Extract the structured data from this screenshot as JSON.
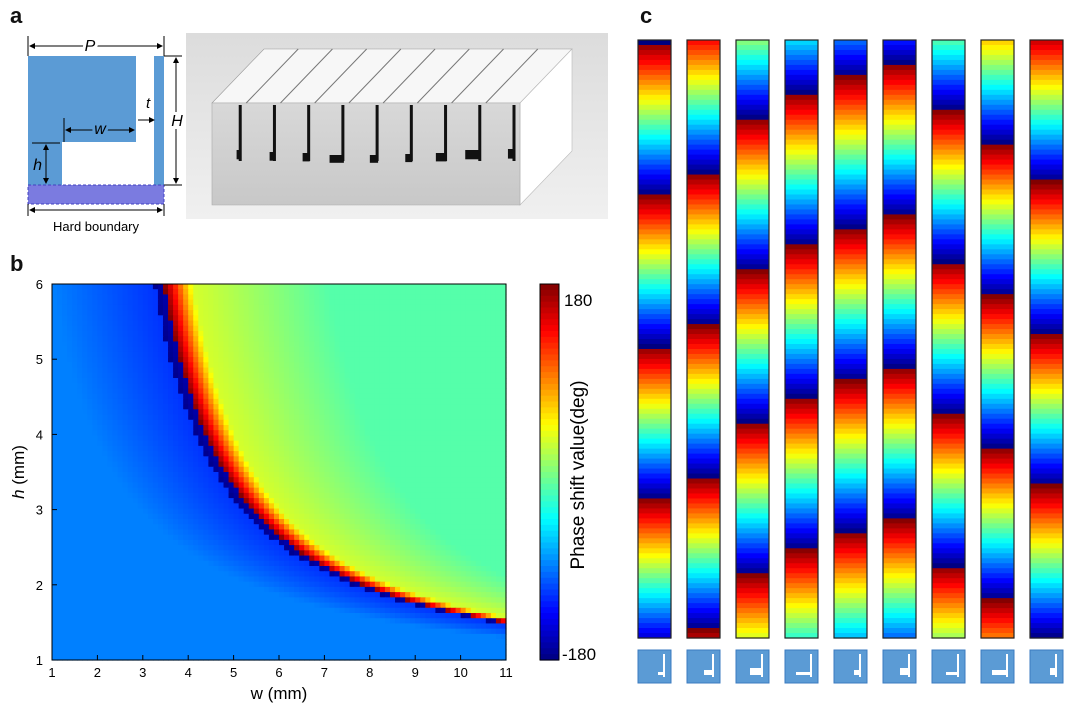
{
  "panels": {
    "a": "a",
    "b": "b",
    "c": "c"
  },
  "diagram_a": {
    "label_P": "P",
    "label_t": "t",
    "label_w": "w",
    "label_h": "h",
    "label_H": "H",
    "boundary_label": "Hard boundary",
    "fill_color": "#5b9bd5",
    "boundary_color": "#7b7be0"
  },
  "colorbar": {
    "max_label": "180",
    "min_label": "-180",
    "title": "Phase shift  value(deg)"
  },
  "chart_data": {
    "type": "heatmap",
    "title": "",
    "xlabel": "w (mm)",
    "ylabel_italic": "h",
    "ylabel_rest": " (mm)",
    "xlim": [
      1,
      11
    ],
    "ylim": [
      1,
      6
    ],
    "xticks": [
      "1",
      "2",
      "3",
      "4",
      "5",
      "6",
      "7",
      "8",
      "9",
      "10",
      "11"
    ],
    "yticks": [
      "1",
      "2",
      "3",
      "4",
      "5",
      "6"
    ],
    "value_range": [
      -180,
      180
    ],
    "colormap": "jet",
    "description_values": {
      "band_start_w_at_h6": 3.5,
      "band_end_w_at_h1_5": 11,
      "background_value_lower_left": -90,
      "background_value_upper_right": 0
    }
  },
  "strips": {
    "count": 9,
    "phase_offsets_deg": [
      180,
      130,
      0,
      -60,
      -100,
      -130,
      -20,
      60,
      150
    ],
    "icon_color": "#5b9bd5"
  }
}
